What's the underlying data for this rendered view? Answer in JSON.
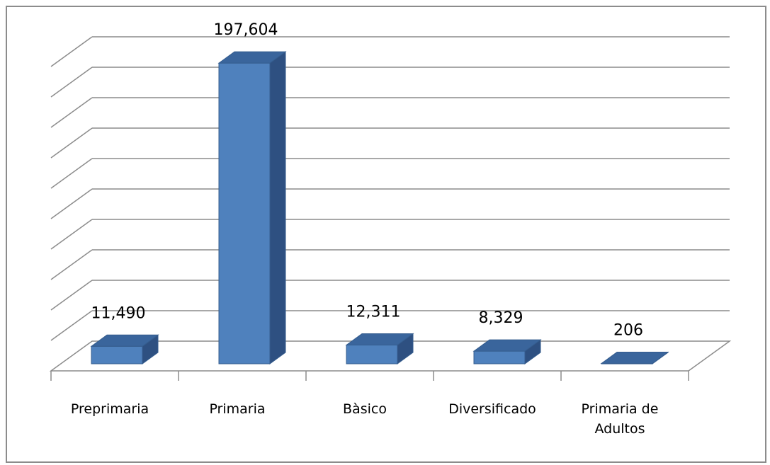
{
  "chart_data": {
    "type": "bar",
    "style": "3d-column",
    "categories": [
      "Preprimaria",
      "Primaria",
      "Bàsico",
      "Diversificado",
      "Primaria de Adultos"
    ],
    "category_lines": [
      [
        "Preprimaria"
      ],
      [
        "Primaria"
      ],
      [
        "Bàsico"
      ],
      [
        "Diversificado"
      ],
      [
        "Primaria de",
        "Adultos"
      ]
    ],
    "values": [
      11490,
      197604,
      12311,
      8329,
      206
    ],
    "data_labels": [
      "11,490",
      "197,604",
      "12,311",
      "8,329",
      "206"
    ],
    "ylim": [
      0,
      200000
    ],
    "y_tick_step": 20000,
    "y_tick_labels_shown": false,
    "grid": true,
    "legend": "none",
    "colors": {
      "bar_front": "#4f81bd",
      "bar_side": "#2e5081",
      "bar_top": "#3a659c",
      "bar_edge": "#355d8e",
      "grid": "#8c8c8c",
      "frame": "#8c8c8c"
    }
  }
}
